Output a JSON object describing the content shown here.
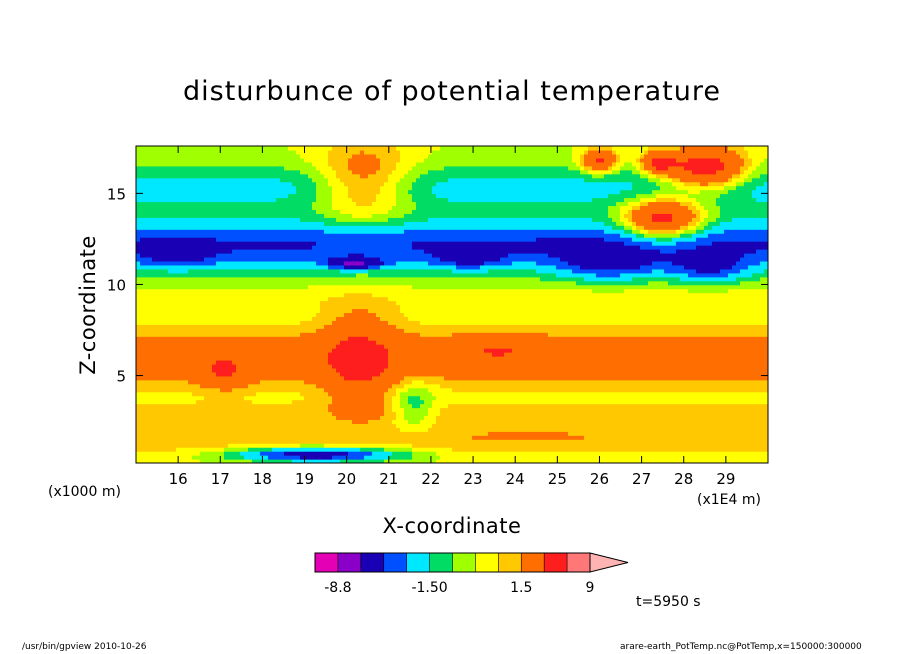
{
  "chart_data": {
    "type": "heatmap",
    "title": "disturbunce of potential temperature",
    "xlabel": "X-coordinate",
    "ylabel": "Z-coordinate",
    "x_unit": "(x1E4 m)",
    "y_unit": "(x1000 m)",
    "time_label": "t=5950 s",
    "xlim": [
      15.0,
      30.0
    ],
    "ylim": [
      0.2,
      17.6
    ],
    "xticks": [
      16,
      17,
      18,
      19,
      20,
      21,
      22,
      23,
      24,
      25,
      26,
      27,
      28,
      29
    ],
    "yticks": [
      5,
      10,
      15
    ],
    "colorbar": {
      "tick_labels": [
        "-8.8",
        "-1.50",
        "1.5",
        "9"
      ],
      "bands": [
        {
          "lo": -10.0,
          "hi": -8.8,
          "color": "#e400b4"
        },
        {
          "lo": -8.8,
          "hi": -6.0,
          "color": "#8a00c8"
        },
        {
          "lo": -6.0,
          "hi": -3.5,
          "color": "#1a00b4"
        },
        {
          "lo": -3.5,
          "hi": -2.5,
          "color": "#0050ff"
        },
        {
          "lo": -2.5,
          "hi": -1.5,
          "color": "#00e8ff"
        },
        {
          "lo": -1.5,
          "hi": -0.75,
          "color": "#00dc64"
        },
        {
          "lo": -0.75,
          "hi": 0.0,
          "color": "#a0ff00"
        },
        {
          "lo": 0.0,
          "hi": 0.75,
          "color": "#ffff00"
        },
        {
          "lo": 0.75,
          "hi": 1.5,
          "color": "#ffc800"
        },
        {
          "lo": 1.5,
          "hi": 4.0,
          "color": "#ff6e00"
        },
        {
          "lo": 4.0,
          "hi": 6.5,
          "color": "#ff1e1e"
        },
        {
          "lo": 6.5,
          "hi": 9.0,
          "color": "#ff7878"
        },
        {
          "lo": 9.0,
          "hi": 12.0,
          "color": "#ffb4b4"
        }
      ]
    },
    "field_features": [
      {
        "kind": "layer",
        "z_center": 6.0,
        "z_halfwidth": 1.6,
        "value": 2.6
      },
      {
        "kind": "layer",
        "z_center": 9.1,
        "z_halfwidth": 0.8,
        "value": 0.5
      },
      {
        "kind": "layer",
        "z_center": 3.0,
        "z_halfwidth": 0.7,
        "value": 0.9
      },
      {
        "kind": "layer",
        "z_center": 1.4,
        "z_halfwidth": 0.9,
        "value": 1.2
      },
      {
        "kind": "layer",
        "z_center": 12.2,
        "z_halfwidth": 1.4,
        "value": -3.6
      },
      {
        "kind": "layer",
        "z_center": 15.3,
        "z_halfwidth": 1.3,
        "value": -1.8
      },
      {
        "kind": "blob",
        "x": 20.3,
        "z": 5.8,
        "rx": 0.8,
        "rz": 2.6,
        "value": 3.2
      },
      {
        "kind": "blob",
        "x": 17.1,
        "z": 5.2,
        "rx": 0.6,
        "rz": 0.9,
        "value": 2.4
      },
      {
        "kind": "blob",
        "x": 23.6,
        "z": 6.5,
        "rx": 0.9,
        "rz": 0.7,
        "value": 1.8
      },
      {
        "kind": "blob",
        "x": 20.4,
        "z": 15.6,
        "rx": 1.1,
        "rz": 2.2,
        "value": 3.0
      },
      {
        "kind": "blob",
        "x": 27.5,
        "z": 13.6,
        "rx": 0.9,
        "rz": 1.1,
        "value": 6.0
      },
      {
        "kind": "blob",
        "x": 28.5,
        "z": 16.4,
        "rx": 0.9,
        "rz": 1.1,
        "value": 6.0
      },
      {
        "kind": "blob",
        "x": 26.0,
        "z": 16.8,
        "rx": 0.4,
        "rz": 0.6,
        "value": 4.8
      },
      {
        "kind": "blob",
        "x": 27.4,
        "z": 16.7,
        "rx": 0.4,
        "rz": 0.6,
        "value": 4.6
      },
      {
        "kind": "blob",
        "x": 26.2,
        "z": 11.1,
        "rx": 1.2,
        "rz": 0.9,
        "value": -2.6
      },
      {
        "kind": "blob",
        "x": 28.6,
        "z": 10.9,
        "rx": 0.9,
        "rz": 0.8,
        "value": -2.6
      },
      {
        "kind": "blob",
        "x": 20.2,
        "z": 11.2,
        "rx": 0.6,
        "rz": 0.3,
        "value": -4.6
      },
      {
        "kind": "blob",
        "x": 21.6,
        "z": 3.4,
        "rx": 0.5,
        "rz": 1.4,
        "value": -1.8
      },
      {
        "kind": "blob",
        "x": 24.3,
        "z": 2.1,
        "rx": 3.2,
        "rz": 0.8,
        "value": 0.6
      },
      {
        "kind": "blob",
        "x": 19.3,
        "z": 0.7,
        "rx": 2.0,
        "rz": 0.4,
        "value": -5.0
      },
      {
        "kind": "blob",
        "x": 16.0,
        "z": 11.5,
        "rx": 0.9,
        "rz": 0.6,
        "value": -1.4
      },
      {
        "kind": "blob",
        "x": 22.9,
        "z": 11.4,
        "rx": 0.8,
        "rz": 0.5,
        "value": -2.0
      }
    ]
  },
  "footer": {
    "left": "/usr/bin/gpview   2010-10-26",
    "right": "arare-earth_PotTemp.nc@PotTemp,x=150000:300000"
  }
}
